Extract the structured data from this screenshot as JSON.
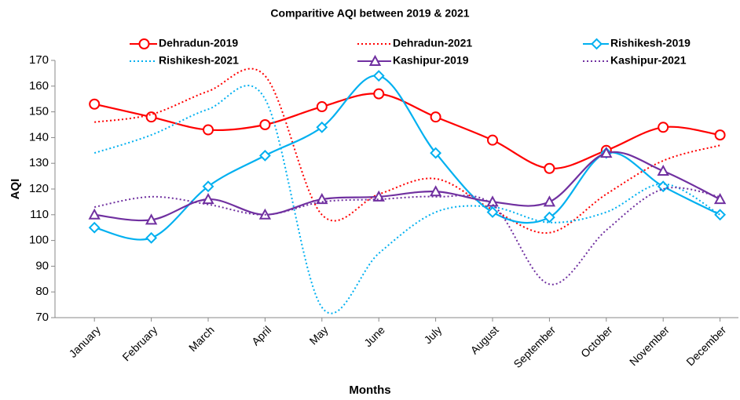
{
  "chart_data": {
    "type": "line",
    "title": "Comparitive AQI between 2019 & 2021",
    "x_label": "Months",
    "y_label": "AQI",
    "categories": [
      "January",
      "February",
      "March",
      "April",
      "May",
      "June",
      "July",
      "August",
      "September",
      "October",
      "November",
      "December"
    ],
    "ylim": [
      70,
      170
    ],
    "yticks": [
      70,
      80,
      90,
      100,
      110,
      120,
      130,
      140,
      150,
      160,
      170
    ],
    "grid": false,
    "smooth": true,
    "legend": "top",
    "series": [
      {
        "name": "Dehradun-2019",
        "color": "#ff0000",
        "line_style": "solid",
        "marker": "circle",
        "values": [
          153,
          148,
          143,
          145,
          152,
          157,
          148,
          139,
          128,
          135,
          144,
          141
        ]
      },
      {
        "name": "Dehradun-2021",
        "color": "#ff0000",
        "line_style": "dotted",
        "marker": null,
        "values": [
          146,
          149,
          158,
          164,
          110,
          118,
          124,
          112,
          103,
          118,
          131,
          137
        ]
      },
      {
        "name": "Rishikesh-2019",
        "color": "#00b0f0",
        "line_style": "solid",
        "marker": "diamond",
        "values": [
          105,
          101,
          121,
          133,
          144,
          164,
          134,
          111,
          109,
          134,
          121,
          110
        ]
      },
      {
        "name": "Rishikesh-2021",
        "color": "#00b0f0",
        "line_style": "dotted",
        "marker": null,
        "values": [
          134,
          141,
          151,
          155,
          74,
          95,
          111,
          113,
          107,
          111,
          122,
          110
        ]
      },
      {
        "name": "Kashipur-2019",
        "color": "#7030a0",
        "line_style": "solid",
        "marker": "triangle",
        "values": [
          110,
          108,
          116,
          110,
          116,
          117,
          119,
          115,
          115,
          134,
          127,
          116
        ]
      },
      {
        "name": "Kashipur-2021",
        "color": "#7030a0",
        "line_style": "dotted",
        "marker": null,
        "values": [
          113,
          117,
          114,
          110,
          115,
          116,
          117,
          114,
          83,
          104,
          120,
          117
        ]
      }
    ]
  }
}
